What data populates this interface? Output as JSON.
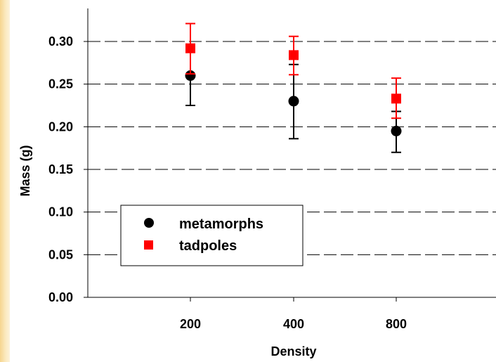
{
  "chart_data": {
    "type": "scatter",
    "title": "",
    "xlabel": "Density",
    "ylabel": "Mass (g)",
    "categories": [
      "200",
      "400",
      "800"
    ],
    "ylim": [
      0,
      0.33
    ],
    "yticks": [
      "0.00",
      "0.05",
      "0.10",
      "0.15",
      "0.20",
      "0.25",
      "0.30"
    ],
    "grid": "horizontal-dashed",
    "legend_position": "bottom-left",
    "series": [
      {
        "name": "metamorphs",
        "marker": "circle",
        "color": "#000000",
        "values": [
          0.26,
          0.23,
          0.195
        ],
        "error_low": [
          0.225,
          0.186,
          0.17
        ],
        "error_high": [
          0.262,
          0.273,
          0.218
        ]
      },
      {
        "name": "tadpoles",
        "marker": "square",
        "color": "#ff0000",
        "values": [
          0.292,
          0.284,
          0.233
        ],
        "error_low": [
          0.262,
          0.261,
          0.21
        ],
        "error_high": [
          0.321,
          0.306,
          0.257
        ]
      }
    ]
  },
  "colors": {
    "sidebar_gradient_light": "#fdf3da",
    "sidebar_gradient_dark": "#f6d58f"
  }
}
